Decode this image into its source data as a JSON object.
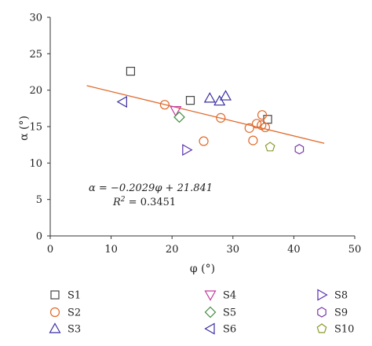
{
  "chart_data": {
    "type": "scatter",
    "xlabel": "φ (°)",
    "ylabel": "α (°)",
    "xlim": [
      0,
      50
    ],
    "ylim": [
      0,
      30
    ],
    "xticks": [
      0,
      10,
      20,
      30,
      40,
      50
    ],
    "yticks": [
      0,
      5,
      10,
      15,
      20,
      25,
      30
    ],
    "grid": false,
    "legend_placement": "bottom",
    "series": [
      {
        "name": "S1",
        "marker": "square",
        "color": "#444444",
        "points": [
          [
            13.2,
            22.6
          ],
          [
            23.0,
            18.6
          ],
          [
            35.7,
            16.0
          ]
        ]
      },
      {
        "name": "S2",
        "marker": "circle",
        "color": "#E0692A",
        "points": [
          [
            18.8,
            18.0
          ],
          [
            25.2,
            13.0
          ],
          [
            28.0,
            16.2
          ],
          [
            32.7,
            14.8
          ],
          [
            33.3,
            13.1
          ],
          [
            33.9,
            15.4
          ],
          [
            34.7,
            15.2
          ],
          [
            34.8,
            16.6
          ],
          [
            35.3,
            14.9
          ]
        ]
      },
      {
        "name": "S3",
        "marker": "triangle-up",
        "color": "#3A2FA0",
        "points": [
          [
            26.2,
            18.9
          ],
          [
            27.8,
            18.5
          ],
          [
            28.8,
            19.2
          ]
        ]
      },
      {
        "name": "S4",
        "marker": "triangle-down",
        "color": "#C2389F",
        "points": [
          [
            20.6,
            17.2
          ]
        ]
      },
      {
        "name": "S5",
        "marker": "diamond",
        "color": "#3E8E3E",
        "points": [
          [
            21.2,
            16.3
          ]
        ]
      },
      {
        "name": "S6",
        "marker": "triangle-left",
        "color": "#3A2FA0",
        "points": [
          [
            11.9,
            18.4
          ]
        ]
      },
      {
        "name": "S8",
        "marker": "triangle-right",
        "color": "#5A2FB0",
        "points": [
          [
            22.4,
            11.8
          ]
        ]
      },
      {
        "name": "S9",
        "marker": "hexagon",
        "color": "#7A3AA8",
        "points": [
          [
            40.9,
            11.9
          ]
        ]
      },
      {
        "name": "S10",
        "marker": "pentagon",
        "color": "#8B9A2A",
        "points": [
          [
            36.1,
            12.2
          ]
        ]
      }
    ],
    "fit_line": {
      "slope": -0.2029,
      "intercept": 21.841,
      "x_range": [
        6,
        45
      ],
      "color": "#E0692A"
    },
    "annotations": {
      "equation": "α = −0.2029φ + 21.841",
      "r2_prefix": "R",
      "r2_sup": "2",
      "r2_suffix": " = 0.3451"
    },
    "legend_rows": [
      [
        "S1",
        "S4",
        "S8"
      ],
      [
        "S2",
        "S5",
        "S9"
      ],
      [
        "S3",
        "S6",
        "S10"
      ]
    ]
  }
}
